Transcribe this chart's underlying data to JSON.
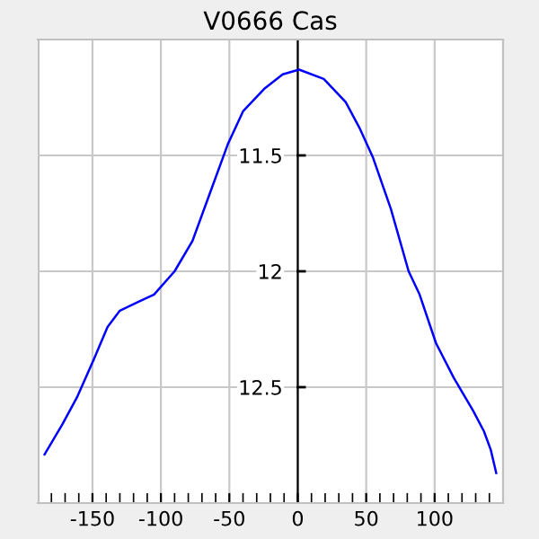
{
  "chart_data": {
    "type": "line",
    "title": "V0666 Cas",
    "x": [
      -185,
      -172,
      -161,
      -149,
      -139,
      -130,
      -116,
      -105,
      -90,
      -77,
      -64,
      -51,
      -40,
      -24,
      -11,
      1,
      19,
      35,
      45,
      55,
      68,
      81,
      89,
      101,
      114,
      128,
      136,
      141,
      145
    ],
    "series": [
      {
        "color": "#0000ff",
        "values": [
          12.79,
          12.66,
          12.54,
          12.38,
          12.24,
          12.17,
          12.13,
          12.1,
          12.0,
          11.87,
          11.66,
          11.45,
          11.31,
          11.21,
          11.15,
          11.13,
          11.17,
          11.27,
          11.38,
          11.51,
          11.73,
          12.0,
          12.1,
          12.31,
          12.46,
          12.6,
          12.69,
          12.77,
          12.87
        ]
      }
    ],
    "xlim": [
      -190,
      150
    ],
    "ylim": [
      13,
      11
    ],
    "xticks": [
      {
        "value": -180,
        "label": null
      },
      {
        "value": -170,
        "label": null
      },
      {
        "value": -160,
        "label": null
      },
      -150,
      {
        "value": -140,
        "label": null
      },
      {
        "value": -130,
        "label": null
      },
      {
        "value": -120,
        "label": null
      },
      {
        "value": -110,
        "label": null
      },
      -100,
      {
        "value": -90,
        "label": null
      },
      {
        "value": -80,
        "label": null
      },
      {
        "value": -70,
        "label": null
      },
      {
        "value": -60,
        "label": null
      },
      -50,
      {
        "value": -40,
        "label": null
      },
      {
        "value": -30,
        "label": null
      },
      {
        "value": -20,
        "label": null
      },
      {
        "value": -10,
        "label": null
      },
      0,
      {
        "value": 10,
        "label": null
      },
      {
        "value": 20,
        "label": null
      },
      {
        "value": 30,
        "label": null
      },
      {
        "value": 40,
        "label": null
      },
      50,
      {
        "value": 60,
        "label": null
      },
      {
        "value": 70,
        "label": null
      },
      {
        "value": 80,
        "label": null
      },
      {
        "value": 90,
        "label": null
      },
      100,
      {
        "value": 110,
        "label": null
      },
      {
        "value": 120,
        "label": null
      },
      {
        "value": 130,
        "label": null
      },
      {
        "value": 140,
        "label": null
      }
    ],
    "yticks": [
      11.5,
      12,
      12.5
    ],
    "grid": true,
    "line_style": "solid",
    "marker": "none"
  }
}
